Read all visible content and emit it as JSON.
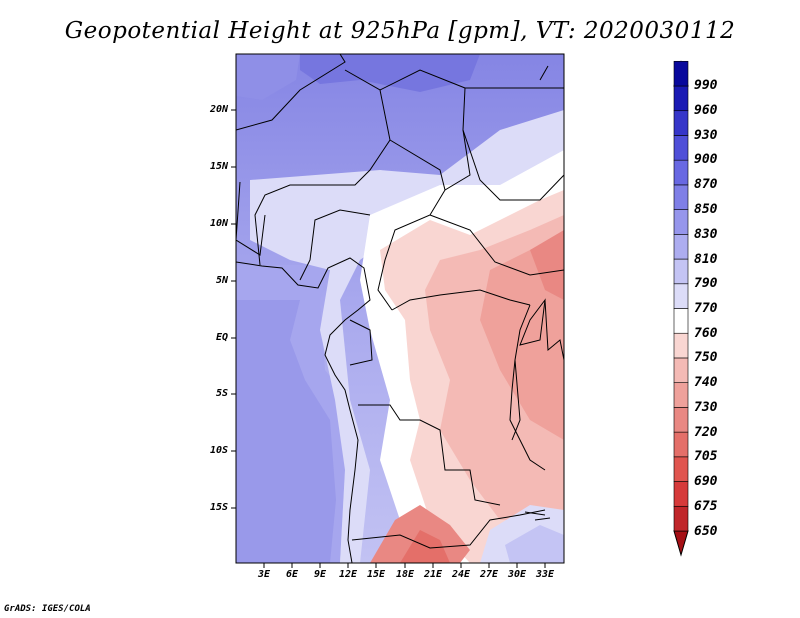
{
  "map": {
    "title": "Geopotential Height at 925hPa [gpm], VT: 2020030112",
    "variable": "Geopotential Height",
    "level": "925hPa",
    "units": "gpm",
    "valid_time": "2020030112",
    "lat_labels": [
      "20N",
      "15N",
      "10N",
      "5N",
      "EQ",
      "5S",
      "10S",
      "15S"
    ],
    "lon_labels": [
      "3E",
      "6E",
      "9E",
      "12E",
      "15E",
      "18E",
      "21E",
      "24E",
      "27E",
      "30E",
      "33E"
    ],
    "footer": "GrADS: IGES/COLA"
  },
  "colorbar": {
    "levels": [
      "650",
      "675",
      "690",
      "705",
      "720",
      "730",
      "740",
      "750",
      "760",
      "770",
      "790",
      "810",
      "830",
      "850",
      "870",
      "900",
      "930",
      "960",
      "990"
    ],
    "colors": [
      "#a50f15",
      "#c0262a",
      "#d63a3a",
      "#e0554f",
      "#e46f69",
      "#e98883",
      "#efa19b",
      "#f4bab5",
      "#f9d6d2",
      "#ffffff",
      "#dcdcf8",
      "#c4c4f4",
      "#adadf0",
      "#9696ec",
      "#7f7fe7",
      "#6868e2",
      "#4f4fd8",
      "#3636c9",
      "#1a1ab4",
      "#08089c"
    ],
    "over_color": "#a0a0a0"
  }
}
